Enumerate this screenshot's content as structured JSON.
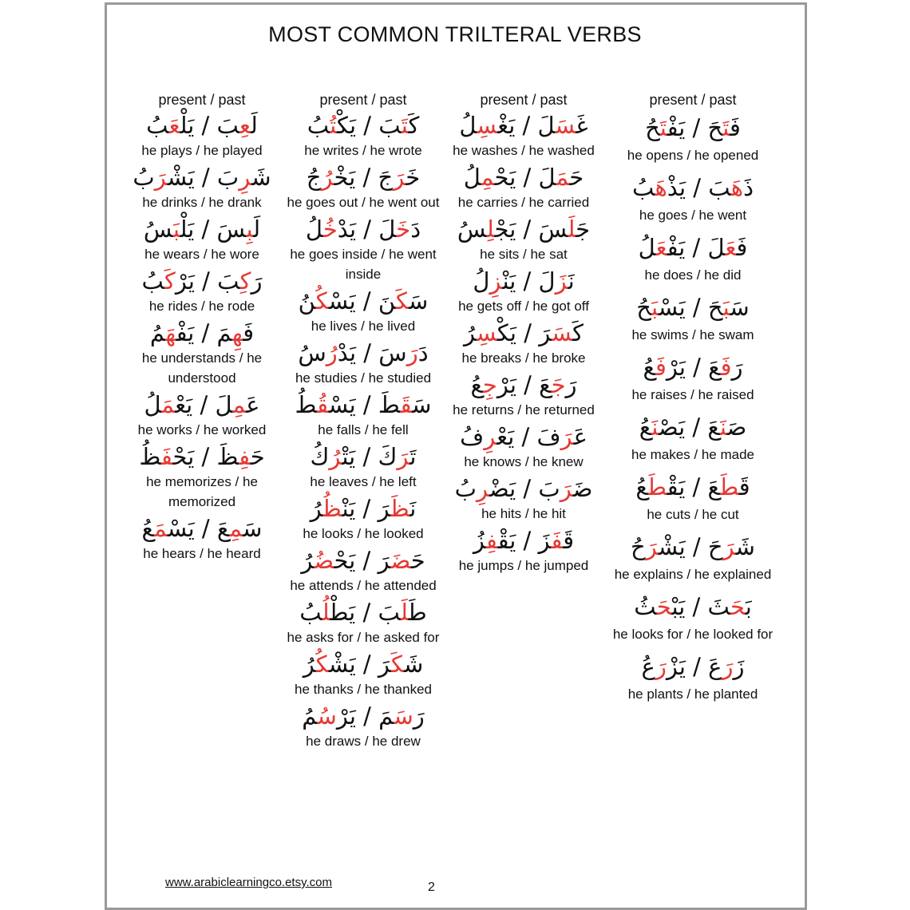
{
  "title": "MOST COMMON TRILTERAL VERBS",
  "column_header": "present / past",
  "separator": " / ",
  "colors": {
    "highlight": "#e53935",
    "text": "#111111"
  },
  "columns": [
    [
      {
        "past": [
          "لَ",
          "عِ",
          "بَ"
        ],
        "present": [
          "يَلْ",
          "عَ",
          "بُ"
        ],
        "english": "he plays / he played"
      },
      {
        "past": [
          "شَ",
          "رِ",
          "بَ"
        ],
        "present": [
          "يَشْ",
          "رَ",
          "بُ"
        ],
        "english": "he drinks / he drank"
      },
      {
        "past": [
          "لَ",
          "بِ",
          "سَ"
        ],
        "present": [
          "يَلْ",
          "بَ",
          "سُ"
        ],
        "english": "he wears / he wore"
      },
      {
        "past": [
          "رَ",
          "كِ",
          "بَ"
        ],
        "present": [
          "يَرْ",
          "كَ",
          "بُ"
        ],
        "english": "he rides / he rode"
      },
      {
        "past": [
          "فَ",
          "هِ",
          "مَ"
        ],
        "present": [
          "يَفْ",
          "هَ",
          "مُ"
        ],
        "english": "he understands / he understood"
      },
      {
        "past": [
          "عَ",
          "مِ",
          "لَ"
        ],
        "present": [
          "يَعْ",
          "مَ",
          "لُ"
        ],
        "english": "he works / he worked"
      },
      {
        "past": [
          "حَ",
          "فِ",
          "ظَ"
        ],
        "present": [
          "يَحْ",
          "فَ",
          "ظُ"
        ],
        "english": "he memorizes / he memorized"
      },
      {
        "past": [
          "سَ",
          "مِ",
          "عَ"
        ],
        "present": [
          "يَسْ",
          "مَ",
          "عُ"
        ],
        "english": "he hears / he heard"
      }
    ],
    [
      {
        "past": [
          "كَ",
          "تَ",
          "بَ"
        ],
        "present": [
          "يَكْ",
          "تُ",
          "بُ"
        ],
        "english": "he writes / he wrote"
      },
      {
        "past": [
          "خَ",
          "رَ",
          "جَ"
        ],
        "present": [
          "يَخْ",
          "رُ",
          "جُ"
        ],
        "english": "he goes out / he went out"
      },
      {
        "past": [
          "دَ",
          "خَ",
          "لَ"
        ],
        "present": [
          "يَدْ",
          "خُ",
          "لُ"
        ],
        "english": "he goes inside / he went inside"
      },
      {
        "past": [
          "سَ",
          "كَ",
          "نَ"
        ],
        "present": [
          "يَسْ",
          "كُ",
          "نُ"
        ],
        "english": "he lives / he lived"
      },
      {
        "past": [
          "دَ",
          "رَ",
          "سَ"
        ],
        "present": [
          "يَدْ",
          "رُ",
          "سُ"
        ],
        "english": "he studies / he studied"
      },
      {
        "past": [
          "سَ",
          "قَ",
          "طَ"
        ],
        "present": [
          "يَسْ",
          "قُ",
          "طُ"
        ],
        "english": "he falls / he fell"
      },
      {
        "past": [
          "تَ",
          "رَ",
          "كَ"
        ],
        "present": [
          "يَتْ",
          "رُ",
          "كُ"
        ],
        "english": "he leaves / he left"
      },
      {
        "past": [
          "نَ",
          "ظَ",
          "رَ"
        ],
        "present": [
          "يَنْ",
          "ظُ",
          "رُ"
        ],
        "english": "he looks / he looked"
      },
      {
        "past": [
          "حَ",
          "ضَ",
          "رَ"
        ],
        "present": [
          "يَحْ",
          "ضُ",
          "رُ"
        ],
        "english": "he attends / he attended"
      },
      {
        "past": [
          "طَ",
          "لَ",
          "بَ"
        ],
        "present": [
          "يَطْ",
          "لُ",
          "بُ"
        ],
        "english": "he asks for / he asked for"
      },
      {
        "past": [
          "شَ",
          "كَ",
          "رَ"
        ],
        "present": [
          "يَشْ",
          "كُ",
          "رُ"
        ],
        "english": "he thanks / he thanked"
      },
      {
        "past": [
          "رَ",
          "سَ",
          "مَ"
        ],
        "present": [
          "يَرْ",
          "سُ",
          "مُ"
        ],
        "english": "he draws / he drew"
      }
    ],
    [
      {
        "past": [
          "غَ",
          "سَ",
          "لَ"
        ],
        "present": [
          "يَغْ",
          "سِ",
          "لُ"
        ],
        "english": "he washes / he washed"
      },
      {
        "past": [
          "حَ",
          "مَ",
          "لَ"
        ],
        "present": [
          "يَحْ",
          "مِ",
          "لُ"
        ],
        "english": "he carries / he carried"
      },
      {
        "past": [
          "جَ",
          "لَ",
          "سَ"
        ],
        "present": [
          "يَجْ",
          "لِ",
          "سُ"
        ],
        "english": "he sits / he sat"
      },
      {
        "past": [
          "نَ",
          "زَ",
          "لَ"
        ],
        "present": [
          "يَنْ",
          "زِ",
          "لُ"
        ],
        "english": "he gets off / he got off"
      },
      {
        "past": [
          "كَ",
          "سَ",
          "رَ"
        ],
        "present": [
          "يَكْ",
          "سِ",
          "رُ"
        ],
        "english": "he breaks / he broke"
      },
      {
        "past": [
          "رَ",
          "جَ",
          "عَ"
        ],
        "present": [
          "يَرْ",
          "جِ",
          "عُ"
        ],
        "english": "he returns / he returned"
      },
      {
        "past": [
          "عَ",
          "رَ",
          "فَ"
        ],
        "present": [
          "يَعْ",
          "رِ",
          "فُ"
        ],
        "english": "he knows / he knew"
      },
      {
        "past": [
          "ضَ",
          "رَ",
          "بَ"
        ],
        "present": [
          "يَضْ",
          "رِ",
          "بُ"
        ],
        "english": "he hits / he hit"
      },
      {
        "past": [
          "قَ",
          "فَ",
          "زَ"
        ],
        "present": [
          "يَقْ",
          "فِ",
          "زُ"
        ],
        "english": "he jumps / he jumped"
      }
    ],
    [
      {
        "past": [
          "فَ",
          "تَ",
          "حَ"
        ],
        "present": [
          "يَفْ",
          "تَ",
          "حُ"
        ],
        "english": "he opens / he opened"
      },
      {
        "past": [
          "ذَ",
          "هَ",
          "بَ"
        ],
        "present": [
          "يَذْ",
          "هَ",
          "بُ"
        ],
        "english": "he goes / he went"
      },
      {
        "past": [
          "فَ",
          "عَ",
          "لَ"
        ],
        "present": [
          "يَفْ",
          "عَ",
          "لُ"
        ],
        "english": "he does / he did"
      },
      {
        "past": [
          "سَ",
          "بَ",
          "حَ"
        ],
        "present": [
          "يَسْ",
          "بَ",
          "حُ"
        ],
        "english": "he swims / he swam"
      },
      {
        "past": [
          "رَ",
          "فَ",
          "عَ"
        ],
        "present": [
          "يَرْ",
          "فَ",
          "عُ"
        ],
        "english": "he raises / he raised"
      },
      {
        "past": [
          "صَ",
          "نَ",
          "عَ"
        ],
        "present": [
          "يَصْ",
          "نَ",
          "عُ"
        ],
        "english": "he makes / he made"
      },
      {
        "past": [
          "قَ",
          "طَ",
          "عَ"
        ],
        "present": [
          "يَقْ",
          "طَ",
          "عُ"
        ],
        "english": "he cuts / he cut"
      },
      {
        "past": [
          "شَ",
          "رَ",
          "حَ"
        ],
        "present": [
          "يَشْ",
          "رَ",
          "حُ"
        ],
        "english": "he explains / he explained"
      },
      {
        "past": [
          "بَ",
          "حَ",
          "ثَ"
        ],
        "present": [
          "يَبْ",
          "حَ",
          "ثُ"
        ],
        "english": "he looks for / he looked for"
      },
      {
        "past": [
          "زَ",
          "رَ",
          "عَ"
        ],
        "present": [
          "يَزْ",
          "رَ",
          "عُ"
        ],
        "english": "he plants / he planted"
      }
    ]
  ],
  "footer": {
    "link": "www.arabiclearningco.etsy.com",
    "page_number": "2"
  }
}
